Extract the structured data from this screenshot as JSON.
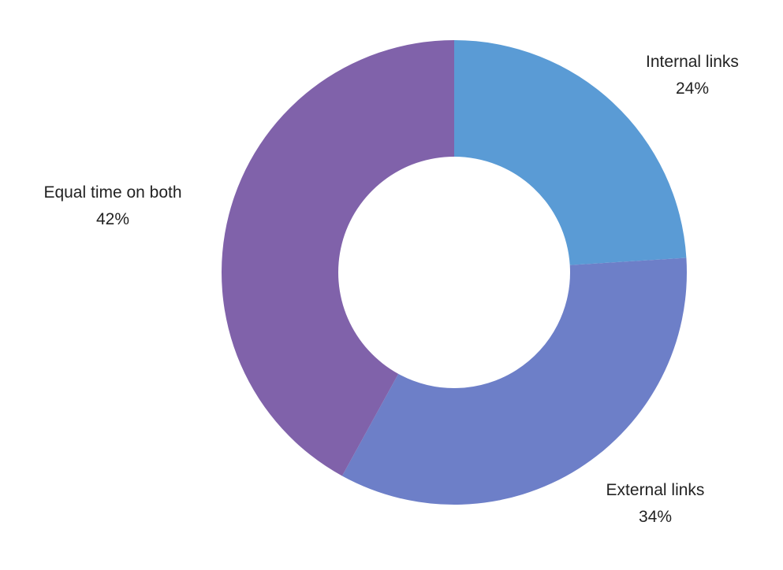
{
  "chart_data": {
    "type": "pie",
    "variant": "donut",
    "legend": "none",
    "slices": [
      {
        "label": "Internal links",
        "value": 24,
        "value_label": "24%",
        "color": "#5a9bd5"
      },
      {
        "label": "External links",
        "value": 34,
        "value_label": "34%",
        "color": "#6d7fc8"
      },
      {
        "label": "Equal time on both",
        "value": 42,
        "value_label": "42%",
        "color": "#8062aa"
      }
    ]
  }
}
